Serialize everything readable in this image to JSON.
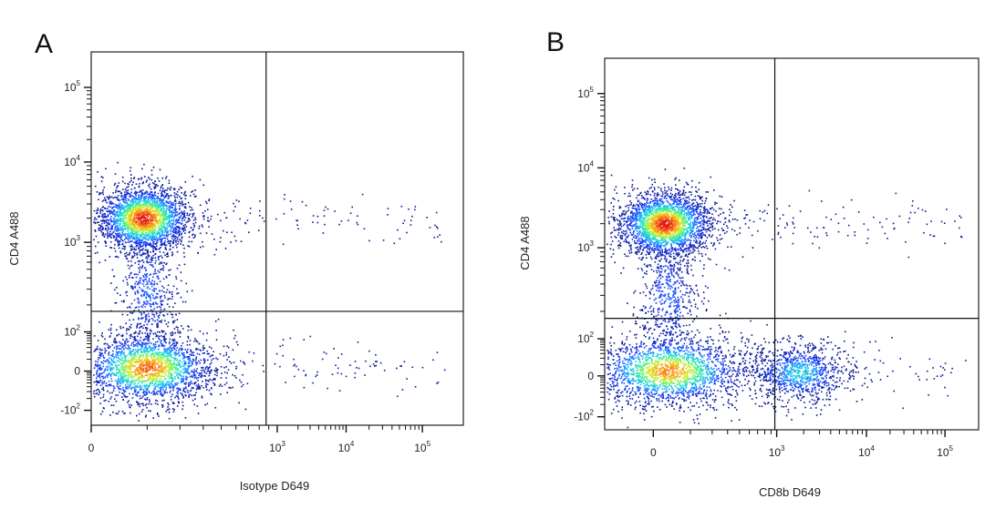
{
  "chart_data": [
    {
      "type": "scatter",
      "panel_label": "A",
      "xlabel": "Isotype D649",
      "ylabel": "CD4 A488",
      "x_ticks": [
        {
          "label": "0",
          "pos": 0
        },
        {
          "label": "10",
          "exp": "3",
          "pos": 0.5
        },
        {
          "label": "10",
          "exp": "4",
          "pos": 0.685
        },
        {
          "label": "10",
          "exp": "5",
          "pos": 0.89
        }
      ],
      "y_ticks": [
        {
          "label": "10",
          "exp": "5",
          "pos": 0.905
        },
        {
          "label": "10",
          "exp": "4",
          "pos": 0.705
        },
        {
          "label": "10",
          "exp": "3",
          "pos": 0.49
        },
        {
          "label": "10",
          "exp": "2",
          "pos": 0.25
        },
        {
          "label": "0",
          "pos": 0.145
        },
        {
          "label": "-10",
          "exp": "2",
          "pos": 0.04
        }
      ],
      "gates": {
        "x": 0.47,
        "y": 0.305
      },
      "populations": [
        {
          "name": "CD4 positive",
          "x": 0.14,
          "y": 0.555,
          "sx": 0.048,
          "sy": 0.034,
          "peak": 1.0
        },
        {
          "name": "CD4 negative",
          "x": 0.15,
          "y": 0.155,
          "sx": 0.07,
          "sy": 0.036,
          "peak": 0.9
        },
        {
          "name": "bridge",
          "x": 0.15,
          "y": 0.36,
          "sx": 0.03,
          "sy": 0.06,
          "peak": 0.22
        }
      ],
      "colors": [
        "#08148c",
        "#1840ff",
        "#18b8ff",
        "#30f0a0",
        "#d8f020",
        "#ff8c10",
        "#e01010"
      ]
    },
    {
      "type": "scatter",
      "panel_label": "B",
      "xlabel": "CD8b D649",
      "ylabel": "CD4 A488",
      "x_ticks": [
        {
          "label": "0",
          "pos": 0.13
        },
        {
          "label": "10",
          "exp": "3",
          "pos": 0.46
        },
        {
          "label": "10",
          "exp": "4",
          "pos": 0.7
        },
        {
          "label": "10",
          "exp": "5",
          "pos": 0.91
        }
      ],
      "y_ticks": [
        {
          "label": "10",
          "exp": "5",
          "pos": 0.905
        },
        {
          "label": "10",
          "exp": "4",
          "pos": 0.705
        },
        {
          "label": "10",
          "exp": "3",
          "pos": 0.49
        },
        {
          "label": "10",
          "exp": "2",
          "pos": 0.245
        },
        {
          "label": "0",
          "pos": 0.145
        },
        {
          "label": "-10",
          "exp": "2",
          "pos": 0.035
        }
      ],
      "gates": {
        "x": 0.455,
        "y": 0.3
      },
      "populations": [
        {
          "name": "CD4 positive",
          "x": 0.16,
          "y": 0.555,
          "sx": 0.048,
          "sy": 0.034,
          "peak": 1.0
        },
        {
          "name": "CD4 negative",
          "x": 0.17,
          "y": 0.16,
          "sx": 0.08,
          "sy": 0.036,
          "peak": 0.85
        },
        {
          "name": "CD8b positive",
          "x": 0.52,
          "y": 0.155,
          "sx": 0.05,
          "sy": 0.03,
          "peak": 0.4
        },
        {
          "name": "bridge",
          "x": 0.17,
          "y": 0.36,
          "sx": 0.03,
          "sy": 0.06,
          "peak": 0.22
        }
      ],
      "colors": [
        "#08148c",
        "#1840ff",
        "#18b8ff",
        "#30f0a0",
        "#d8f020",
        "#ff8c10",
        "#e01010"
      ]
    }
  ]
}
